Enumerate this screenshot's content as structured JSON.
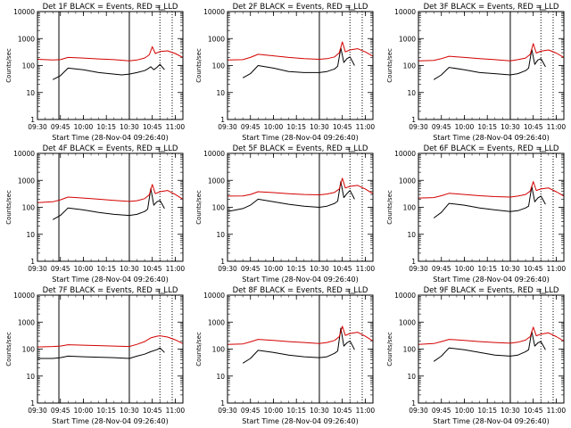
{
  "figure": {
    "colors": {
      "events": "#000000",
      "lld": "#d40000",
      "axes": "#000000",
      "background": "#ffffff"
    }
  },
  "chart_data": [
    {
      "type": "line",
      "title": "Det 1F BLACK = Events, RED = LLD",
      "xlabel": "Start Time (28-Nov-04 09:26:40)",
      "ylabel": "Counts/sec",
      "yscale": "log",
      "ylim": [
        1,
        10000
      ],
      "y_ticks": [
        "1",
        "10",
        "100",
        "1000",
        "10000"
      ],
      "xlim": [
        "09:30",
        "11:05"
      ],
      "x_ticks": [
        "09:30",
        "09:45",
        "10:00",
        "10:15",
        "10:30",
        "10:45",
        "11:00"
      ],
      "vertical_lines_solid": [
        "09:44",
        "10:30"
      ],
      "vertical_lines_dotted": [
        "10:50",
        "10:58"
      ],
      "series": [
        {
          "name": "Events",
          "x": [
            "09:40",
            "09:45",
            "09:50",
            "10:00",
            "10:10",
            "10:20",
            "10:25",
            "10:30",
            "10:35",
            "10:40",
            "10:42",
            "10:44",
            "10:46",
            "10:48",
            "10:50",
            "10:53"
          ],
          "y": [
            30,
            42,
            80,
            70,
            55,
            48,
            45,
            48,
            55,
            65,
            75,
            90,
            70,
            85,
            110,
            70
          ]
        },
        {
          "name": "LLD",
          "x": [
            "09:30",
            "09:40",
            "09:45",
            "09:50",
            "10:00",
            "10:10",
            "10:20",
            "10:30",
            "10:35",
            "10:40",
            "10:43",
            "10:45",
            "10:47",
            "10:50",
            "10:55",
            "11:00",
            "11:05"
          ],
          "y": [
            170,
            160,
            165,
            200,
            190,
            175,
            165,
            150,
            160,
            190,
            250,
            500,
            280,
            330,
            350,
            280,
            200
          ]
        }
      ]
    },
    {
      "type": "line",
      "title": "Det 2F BLACK = Events, RED = LLD",
      "xlabel": "Start Time (28-Nov-04 09:26:40)",
      "ylabel": "Counts/sec",
      "yscale": "log",
      "ylim": [
        1,
        10000
      ],
      "y_ticks": [
        "1",
        "10",
        "100",
        "1000",
        "10000"
      ],
      "xlim": [
        "09:30",
        "11:05"
      ],
      "x_ticks": [
        "09:30",
        "09:45",
        "10:00",
        "10:15",
        "10:30",
        "10:45",
        "11:00"
      ],
      "vertical_lines_solid": [
        "10:30"
      ],
      "vertical_lines_dotted": [
        "10:50",
        "10:58"
      ],
      "series": [
        {
          "name": "Events",
          "x": [
            "09:40",
            "09:45",
            "09:50",
            "10:00",
            "10:10",
            "10:20",
            "10:30",
            "10:35",
            "10:40",
            "10:42",
            "10:44",
            "10:46",
            "10:48",
            "10:50",
            "10:53"
          ],
          "y": [
            35,
            50,
            100,
            80,
            60,
            55,
            55,
            60,
            75,
            95,
            450,
            130,
            180,
            210,
            100
          ]
        },
        {
          "name": "LLD",
          "x": [
            "09:30",
            "09:40",
            "09:45",
            "09:50",
            "10:00",
            "10:10",
            "10:20",
            "10:30",
            "10:35",
            "10:40",
            "10:43",
            "10:45",
            "10:47",
            "10:50",
            "10:55",
            "11:00",
            "11:05"
          ],
          "y": [
            160,
            165,
            200,
            260,
            230,
            200,
            180,
            170,
            180,
            210,
            300,
            750,
            320,
            380,
            420,
            320,
            220
          ]
        }
      ]
    },
    {
      "type": "line",
      "title": "Det 3F BLACK = Events, RED = LLD",
      "xlabel": "Start Time (28-Nov-04 09:26:40)",
      "ylabel": "Counts/sec",
      "yscale": "log",
      "ylim": [
        1,
        10000
      ],
      "y_ticks": [
        "1",
        "10",
        "100",
        "1000",
        "10000"
      ],
      "xlim": [
        "09:30",
        "11:05"
      ],
      "x_ticks": [
        "09:30",
        "09:45",
        "10:00",
        "10:15",
        "10:30",
        "10:45",
        "11:00"
      ],
      "vertical_lines_solid": [
        "10:30"
      ],
      "vertical_lines_dotted": [
        "10:50",
        "10:58"
      ],
      "series": [
        {
          "name": "Events",
          "x": [
            "09:40",
            "09:45",
            "09:50",
            "10:00",
            "10:10",
            "10:20",
            "10:30",
            "10:35",
            "10:40",
            "10:42",
            "10:44",
            "10:46",
            "10:48",
            "10:50",
            "10:53"
          ],
          "y": [
            30,
            45,
            85,
            70,
            55,
            50,
            45,
            50,
            65,
            80,
            400,
            110,
            160,
            180,
            90
          ]
        },
        {
          "name": "LLD",
          "x": [
            "09:30",
            "09:40",
            "09:45",
            "09:50",
            "10:00",
            "10:10",
            "10:20",
            "10:30",
            "10:35",
            "10:40",
            "10:43",
            "10:45",
            "10:47",
            "10:50",
            "10:55",
            "11:00",
            "11:05"
          ],
          "y": [
            150,
            155,
            180,
            220,
            200,
            180,
            165,
            150,
            165,
            190,
            260,
            650,
            290,
            340,
            380,
            290,
            200
          ]
        }
      ]
    },
    {
      "type": "line",
      "title": "Det 4F BLACK = Events, RED = LLD",
      "xlabel": "Start Time (28-Nov-04 09:26:40)",
      "ylabel": "Counts/sec",
      "yscale": "log",
      "ylim": [
        1,
        10000
      ],
      "y_ticks": [
        "1",
        "10",
        "100",
        "1000",
        "10000"
      ],
      "xlim": [
        "09:30",
        "11:05"
      ],
      "x_ticks": [
        "09:30",
        "09:45",
        "10:00",
        "10:15",
        "10:30",
        "10:45",
        "11:00"
      ],
      "vertical_lines_solid": [
        "09:44",
        "10:30"
      ],
      "vertical_lines_dotted": [
        "10:50",
        "10:58"
      ],
      "series": [
        {
          "name": "Events",
          "x": [
            "09:40",
            "09:45",
            "09:50",
            "10:00",
            "10:10",
            "10:20",
            "10:30",
            "10:35",
            "10:40",
            "10:42",
            "10:44",
            "10:46",
            "10:48",
            "10:50",
            "10:53"
          ],
          "y": [
            35,
            50,
            95,
            80,
            65,
            55,
            50,
            55,
            70,
            85,
            500,
            120,
            160,
            180,
            90
          ]
        },
        {
          "name": "LLD",
          "x": [
            "09:30",
            "09:40",
            "09:45",
            "09:50",
            "10:00",
            "10:10",
            "10:20",
            "10:30",
            "10:35",
            "10:40",
            "10:43",
            "10:45",
            "10:47",
            "10:50",
            "10:55",
            "11:00",
            "11:05"
          ],
          "y": [
            150,
            160,
            190,
            240,
            220,
            200,
            180,
            165,
            175,
            210,
            290,
            700,
            320,
            380,
            420,
            300,
            200
          ]
        }
      ]
    },
    {
      "type": "line",
      "title": "Det 5F BLACK = Events, RED = LLD",
      "xlabel": "Start Time (28-Nov-04 09:26:40)",
      "ylabel": "Counts/sec",
      "yscale": "log",
      "ylim": [
        1,
        10000
      ],
      "y_ticks": [
        "1",
        "10",
        "100",
        "1000",
        "10000"
      ],
      "xlim": [
        "09:30",
        "11:05"
      ],
      "x_ticks": [
        "09:30",
        "09:45",
        "10:00",
        "10:15",
        "10:30",
        "10:45",
        "11:00"
      ],
      "vertical_lines_solid": [
        "10:30"
      ],
      "vertical_lines_dotted": [
        "10:50",
        "10:58"
      ],
      "series": [
        {
          "name": "Events",
          "x": [
            "09:30",
            "09:40",
            "09:45",
            "09:50",
            "10:00",
            "10:10",
            "10:20",
            "10:30",
            "10:35",
            "10:40",
            "10:42",
            "10:44",
            "10:46",
            "10:48",
            "10:50",
            "10:53"
          ],
          "y": [
            70,
            90,
            120,
            200,
            160,
            130,
            110,
            100,
            110,
            140,
            170,
            900,
            230,
            320,
            420,
            200
          ]
        },
        {
          "name": "LLD",
          "x": [
            "09:30",
            "09:40",
            "09:45",
            "09:50",
            "10:00",
            "10:10",
            "10:20",
            "10:30",
            "10:35",
            "10:40",
            "10:43",
            "10:45",
            "10:47",
            "10:50",
            "10:55",
            "11:00",
            "11:05"
          ],
          "y": [
            260,
            265,
            300,
            380,
            350,
            320,
            300,
            290,
            310,
            360,
            480,
            1200,
            520,
            600,
            650,
            480,
            320
          ]
        }
      ]
    },
    {
      "type": "line",
      "title": "Det 6F BLACK = Events, RED = LLD",
      "xlabel": "Start Time (28-Nov-04 09:26:40)",
      "ylabel": "Counts/sec",
      "yscale": "log",
      "ylim": [
        1,
        10000
      ],
      "y_ticks": [
        "1",
        "10",
        "100",
        "1000",
        "10000"
      ],
      "xlim": [
        "09:30",
        "11:05"
      ],
      "x_ticks": [
        "09:30",
        "09:45",
        "10:00",
        "10:15",
        "10:30",
        "10:45",
        "11:00"
      ],
      "vertical_lines_solid": [
        "10:30"
      ],
      "vertical_lines_dotted": [
        "10:50",
        "10:58"
      ],
      "series": [
        {
          "name": "Events",
          "x": [
            "09:40",
            "09:45",
            "09:50",
            "10:00",
            "10:10",
            "10:20",
            "10:30",
            "10:35",
            "10:40",
            "10:42",
            "10:44",
            "10:46",
            "10:48",
            "10:50",
            "10:53"
          ],
          "y": [
            40,
            65,
            140,
            120,
            95,
            80,
            70,
            75,
            95,
            110,
            600,
            160,
            220,
            260,
            130
          ]
        },
        {
          "name": "LLD",
          "x": [
            "09:30",
            "09:40",
            "09:45",
            "09:50",
            "10:00",
            "10:10",
            "10:20",
            "10:30",
            "10:35",
            "10:40",
            "10:43",
            "10:45",
            "10:47",
            "10:50",
            "10:55",
            "11:00",
            "11:05"
          ],
          "y": [
            220,
            230,
            270,
            330,
            300,
            270,
            250,
            240,
            260,
            300,
            400,
            900,
            420,
            480,
            520,
            380,
            260
          ]
        }
      ]
    },
    {
      "type": "line",
      "title": "Det 7F BLACK = Events, RED = LLD",
      "xlabel": "Start Time (28-Nov-04 09:26:40)",
      "ylabel": "Counts/sec",
      "yscale": "log",
      "ylim": [
        1,
        10000
      ],
      "y_ticks": [
        "1",
        "10",
        "100",
        "1000",
        "10000"
      ],
      "xlim": [
        "09:30",
        "11:05"
      ],
      "x_ticks": [
        "09:30",
        "09:45",
        "10:00",
        "10:15",
        "10:30",
        "10:45",
        "11:00"
      ],
      "vertical_lines_solid": [
        "09:44",
        "10:30"
      ],
      "vertical_lines_dotted": [
        "10:50",
        "10:58"
      ],
      "series": [
        {
          "name": "Events",
          "x": [
            "09:30",
            "09:40",
            "09:45",
            "09:50",
            "10:00",
            "10:10",
            "10:20",
            "10:30",
            "10:35",
            "10:40",
            "10:44",
            "10:48",
            "10:50",
            "10:53"
          ],
          "y": [
            45,
            45,
            48,
            55,
            52,
            50,
            48,
            45,
            55,
            65,
            80,
            95,
            110,
            75
          ]
        },
        {
          "name": "LLD",
          "x": [
            "09:30",
            "09:40",
            "09:45",
            "09:50",
            "10:00",
            "10:10",
            "10:20",
            "10:30",
            "10:35",
            "10:40",
            "10:44",
            "10:48",
            "10:50",
            "10:55",
            "11:00",
            "11:05"
          ],
          "y": [
            120,
            125,
            130,
            145,
            140,
            135,
            130,
            125,
            150,
            190,
            260,
            300,
            310,
            280,
            220,
            160
          ]
        }
      ]
    },
    {
      "type": "line",
      "title": "Det 8F BLACK = Events, RED = LLD",
      "xlabel": "Start Time (28-Nov-04 09:26:40)",
      "ylabel": "Counts/sec",
      "yscale": "log",
      "ylim": [
        1,
        10000
      ],
      "y_ticks": [
        "1",
        "10",
        "100",
        "1000",
        "10000"
      ],
      "xlim": [
        "09:30",
        "11:05"
      ],
      "x_ticks": [
        "09:30",
        "09:45",
        "10:00",
        "10:15",
        "10:30",
        "10:45",
        "11:00"
      ],
      "vertical_lines_solid": [
        "10:30"
      ],
      "vertical_lines_dotted": [
        "10:50",
        "10:58"
      ],
      "series": [
        {
          "name": "Events",
          "x": [
            "09:40",
            "09:45",
            "09:50",
            "10:00",
            "10:10",
            "10:20",
            "10:30",
            "10:35",
            "10:40",
            "10:42",
            "10:44",
            "10:46",
            "10:48",
            "10:50",
            "10:53"
          ],
          "y": [
            30,
            45,
            90,
            75,
            60,
            52,
            48,
            52,
            70,
            85,
            600,
            130,
            170,
            200,
            95
          ]
        },
        {
          "name": "LLD",
          "x": [
            "09:30",
            "09:40",
            "09:45",
            "09:50",
            "10:00",
            "10:10",
            "10:20",
            "10:30",
            "10:35",
            "10:40",
            "10:43",
            "10:45",
            "10:47",
            "10:50",
            "10:55",
            "11:00",
            "11:05"
          ],
          "y": [
            150,
            155,
            185,
            230,
            210,
            190,
            175,
            160,
            175,
            210,
            290,
            700,
            320,
            380,
            420,
            300,
            200
          ]
        }
      ]
    },
    {
      "type": "line",
      "title": "Det 9F BLACK = Events, RED = LLD",
      "xlabel": "Start Time (28-Nov-04 09:26:40)",
      "ylabel": "Counts/sec",
      "yscale": "log",
      "ylim": [
        1,
        10000
      ],
      "y_ticks": [
        "1",
        "10",
        "100",
        "1000",
        "10000"
      ],
      "xlim": [
        "09:30",
        "11:05"
      ],
      "x_ticks": [
        "09:30",
        "09:45",
        "10:00",
        "10:15",
        "10:30",
        "10:45",
        "11:00"
      ],
      "vertical_lines_solid": [
        "10:30"
      ],
      "vertical_lines_dotted": [
        "10:50",
        "10:58"
      ],
      "series": [
        {
          "name": "Events",
          "x": [
            "09:40",
            "09:45",
            "09:50",
            "10:00",
            "10:10",
            "10:20",
            "10:30",
            "10:35",
            "10:40",
            "10:42",
            "10:44",
            "10:46",
            "10:48",
            "10:50",
            "10:53"
          ],
          "y": [
            35,
            55,
            110,
            95,
            75,
            60,
            55,
            60,
            80,
            95,
            450,
            130,
            170,
            190,
            95
          ]
        },
        {
          "name": "LLD",
          "x": [
            "09:30",
            "09:40",
            "09:45",
            "09:50",
            "10:00",
            "10:10",
            "10:20",
            "10:30",
            "10:35",
            "10:40",
            "10:43",
            "10:45",
            "10:47",
            "10:50",
            "10:55",
            "11:00",
            "11:05"
          ],
          "y": [
            150,
            160,
            190,
            230,
            210,
            190,
            175,
            165,
            180,
            215,
            290,
            650,
            310,
            360,
            400,
            290,
            200
          ]
        }
      ]
    }
  ]
}
